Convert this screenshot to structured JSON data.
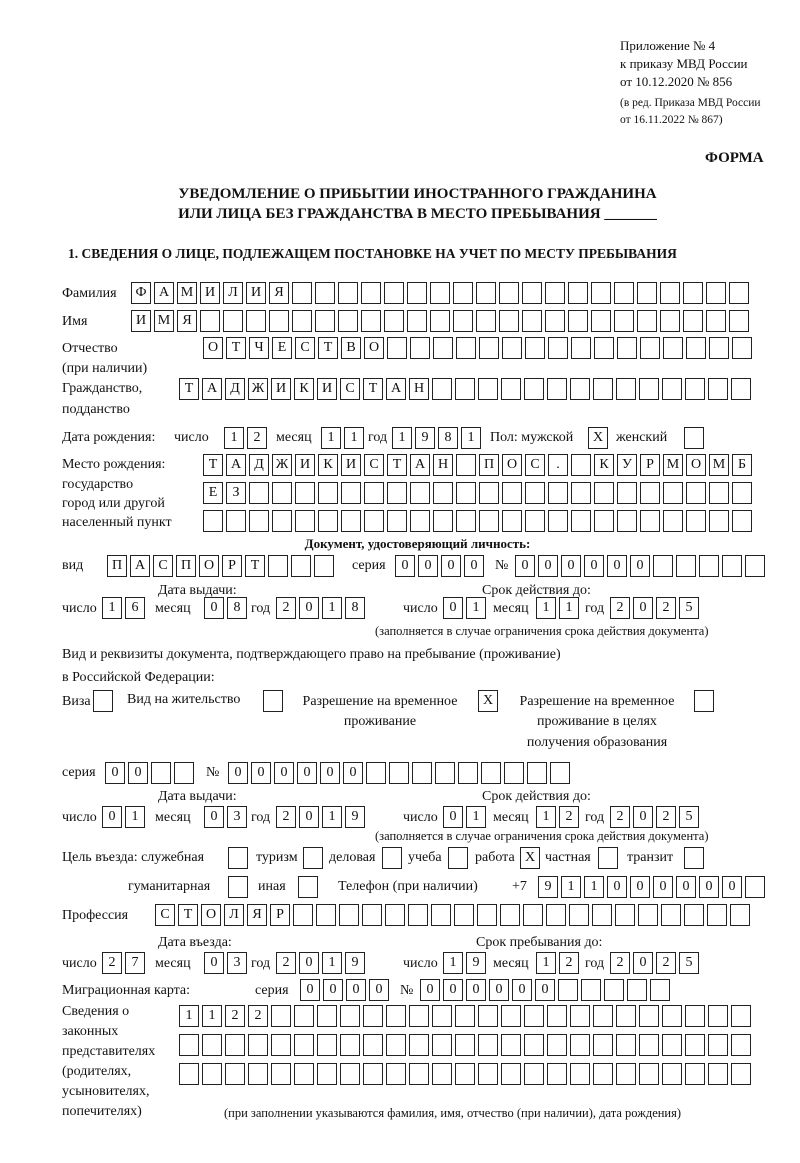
{
  "header": {
    "appendix": "Приложение № 4",
    "order": "к приказу МВД России",
    "order_date": "от 10.12.2020 № 856",
    "revision1": "(в ред. Приказа МВД России",
    "revision2": "от 16.11.2022 № 867)",
    "form_label": "ФОРМА",
    "title1": "УВЕДОМЛЕНИЕ О ПРИБЫТИИ ИНОСТРАННОГО ГРАЖДАНИНА",
    "title2": "ИЛИ ЛИЦА БЕЗ ГРАЖДАНСТВА В МЕСТО ПРЕБЫВАНИЯ _______",
    "section1": "1. СВЕДЕНИЯ О ЛИЦЕ, ПОДЛЕЖАЩЕМ ПОСТАНОВКЕ НА УЧЕТ ПО МЕСТУ ПРЕБЫВАНИЯ"
  },
  "person": {
    "surname_label": "Фамилия",
    "surname": "ФАМИЛИЯ",
    "name_label": "Имя",
    "name": "ИМЯ",
    "patronymic_label": "Отчество",
    "patronymic_note": "(при наличии)",
    "patronymic": "ОТЧЕСТВО",
    "citizenship_label1": "Гражданство,",
    "citizenship_label2": "подданство",
    "citizenship": "ТАДЖИКИСТАН",
    "dob_label": "Дата рождения:",
    "day_label": "число",
    "month_label": "месяц",
    "year_label": "год",
    "dob_day": "12",
    "dob_month": "11",
    "dob_year": "1981",
    "sex_label": "Пол: мужской",
    "male": "X",
    "female_label": "женский",
    "female": "",
    "birthplace_label1": "Место рождения:",
    "birthplace_label2": "государство",
    "birthplace_label3": "город или другой",
    "birthplace_label4": "населенный пункт",
    "birthplace_line1": "ТАДЖИКИСТАН ПОС. КУРМОМБ",
    "birthplace_line2": "ЕЗ",
    "birthplace_line3": ""
  },
  "id_document": {
    "heading": "Документ, удостоверяющий личность:",
    "type_label": "вид",
    "type": "ПАСПОРТ",
    "series_label": "серия",
    "series": "0000",
    "number_label": "№",
    "number": "000000",
    "issue_label": "Дата выдачи:",
    "issue_day": "16",
    "issue_month": "08",
    "issue_year": "2018",
    "valid_label": "Срок действия до:",
    "valid_day": "01",
    "valid_month": "11",
    "valid_year": "2025",
    "note": "(заполняется в случае ограничения срока действия документа)"
  },
  "residence_doc": {
    "heading1": "Вид и реквизиты документа, подтверждающего право на пребывание (проживание)",
    "heading2": "в Российской Федерации:",
    "visa_label": "Виза",
    "visa": "",
    "vnzh_label": "Вид на жительство",
    "vnzh": "",
    "rvp_label1": "Разрешение на временное",
    "rvp_label2": "проживание",
    "rvp": "X",
    "rvp_edu_label1": "Разрешение на временное",
    "rvp_edu_label2": "проживание в целях",
    "rvp_edu_label3": "получения образования",
    "rvp_edu": "",
    "series_label": "серия",
    "series": "00",
    "number_label": "№",
    "number": "000000",
    "issue_label": "Дата выдачи:",
    "issue_day": "01",
    "issue_month": "03",
    "issue_year": "2019",
    "valid_label": "Срок действия до:",
    "valid_day": "01",
    "valid_month": "12",
    "valid_year": "2025",
    "note": "(заполняется в случае ограничения срока действия документа)"
  },
  "purpose": {
    "label": "Цель въезда: служебная",
    "service": "",
    "tourism_label": "туризм",
    "tourism": "",
    "business_label": "деловая",
    "business": "",
    "study_label": "учеба",
    "study": "",
    "work_label": "работа",
    "work": "X",
    "private_label": "частная",
    "private": "",
    "transit_label": "транзит",
    "transit": "",
    "humanitarian_label": "гуманитарная",
    "humanitarian": "",
    "other_label": "иная",
    "other": "",
    "phone_label": "Телефон (при наличии)",
    "phone_prefix": "+7",
    "phone": "911000000"
  },
  "profession": {
    "label": "Профессия",
    "value": "СТОЛЯР"
  },
  "entry": {
    "entry_label": "Дата въезда:",
    "entry_day": "27",
    "entry_month": "03",
    "entry_year": "2019",
    "stay_label": "Срок пребывания до:",
    "stay_day": "19",
    "stay_month": "12",
    "stay_year": "2025"
  },
  "migration_card": {
    "label": "Миграционная карта:",
    "series_label": "серия",
    "series": "0000",
    "number_label": "№",
    "number": "000000"
  },
  "representatives": {
    "label1": "Сведения о",
    "label2": "законных",
    "label3": "представителях",
    "label4": "(родителях,",
    "label5": "усыновителях,",
    "label6": "попечителях)",
    "line1": "1122",
    "line2": "",
    "line3": "",
    "note": "(при заполнении указываются фамилия, имя, отчество (при наличии), дата рождения)"
  }
}
